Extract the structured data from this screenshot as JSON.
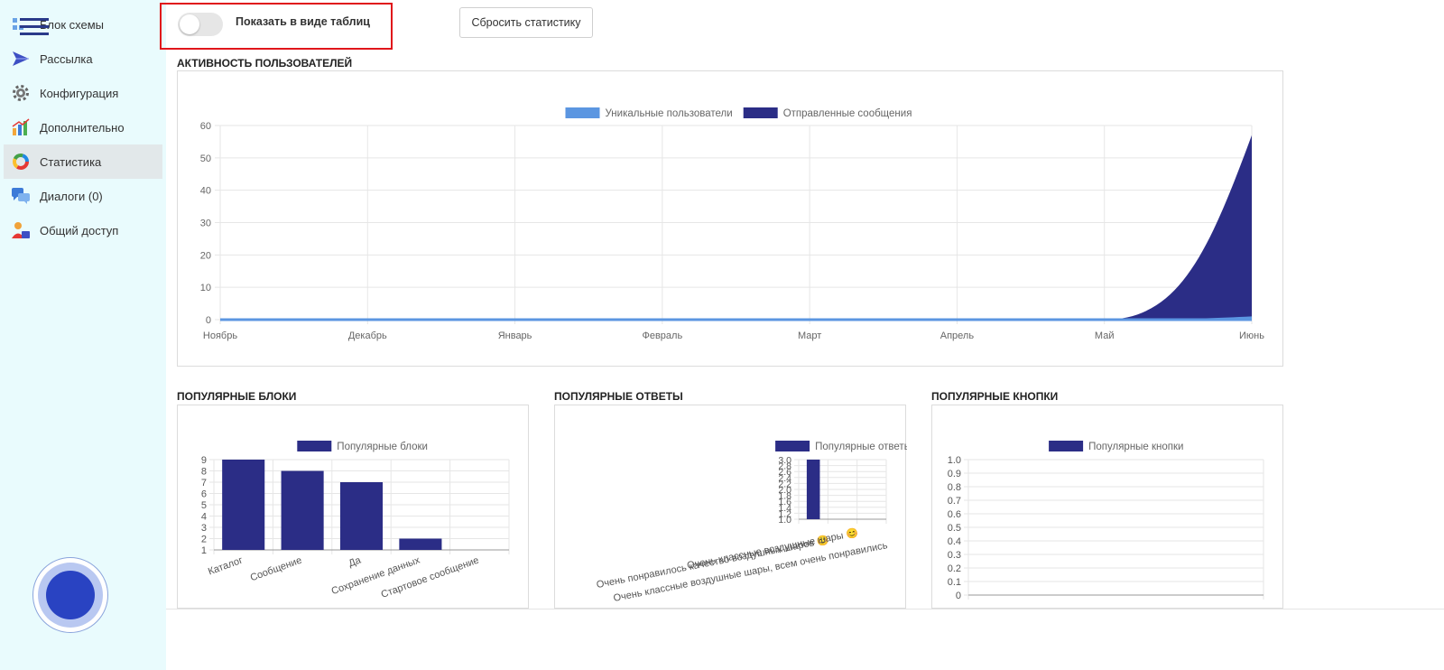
{
  "sidebar": {
    "items": [
      {
        "label": "Блок схемы",
        "icon": "flowchart-icon"
      },
      {
        "label": "Рассылка",
        "icon": "paper-plane-icon"
      },
      {
        "label": "Конфигурация",
        "icon": "gear-icon"
      },
      {
        "label": "Дополнительно",
        "icon": "bar-chart-icon"
      },
      {
        "label": "Статистика",
        "icon": "donut-chart-icon",
        "active": true
      },
      {
        "label": "Диалоги (0)",
        "icon": "chat-bubbles-icon"
      },
      {
        "label": "Общий доступ",
        "icon": "user-share-icon"
      }
    ]
  },
  "toolbar": {
    "toggle_label": "Показать в виде таблиц",
    "toggle_on": false,
    "reset_label": "Сбросить статистику"
  },
  "colors": {
    "unique_users": "#5b96e1",
    "messages": "#2b2d86",
    "highlight_border": "#e0161b",
    "sidebar_bg": "#e9fbfd"
  },
  "sections": {
    "activity_title": "АКТИВНОСТЬ ПОЛЬЗОВАТЕЛЕЙ",
    "blocks_title": "ПОПУЛЯРНЫЕ БЛОКИ",
    "answers_title": "ПОПУЛЯРНЫЕ ОТВЕТЫ",
    "buttons_title": "ПОПУЛЯРНЫЕ КНОПКИ"
  },
  "chart_data": [
    {
      "type": "area",
      "x": [
        "Ноябрь",
        "Декабрь",
        "Январь",
        "Февраль",
        "Март",
        "Апрель",
        "Май",
        "Июнь"
      ],
      "series": [
        {
          "name": "Уникальные пользователи",
          "values": [
            0,
            0,
            0,
            0,
            0,
            0,
            0,
            1
          ]
        },
        {
          "name": "Отправленные сообщения",
          "values": [
            0,
            0,
            0,
            0,
            0,
            0,
            0,
            57
          ]
        }
      ],
      "ylim": [
        0,
        60
      ],
      "yticks": [
        0,
        10,
        20,
        30,
        40,
        50,
        60
      ],
      "legend": "top",
      "grid": true
    },
    {
      "type": "bar",
      "categories": [
        "Каталог",
        "Сообщение",
        "Да",
        "Сохранение данных",
        "Стартовое сообщение"
      ],
      "series": [
        {
          "name": "Популярные блоки",
          "values": [
            9,
            8,
            7,
            2,
            1
          ]
        }
      ],
      "ylim": [
        1,
        9
      ],
      "yticks": [
        1,
        2,
        3,
        4,
        5,
        6,
        7,
        8,
        9
      ],
      "legend": "top",
      "grid": true
    },
    {
      "type": "bar",
      "categories": [
        "Очень понравилось качество воздушных шаров 😊",
        "Очень классные воздушные шары 😊",
        "Очень классные воздушные шары, всем очень понравились"
      ],
      "series": [
        {
          "name": "Популярные ответы",
          "values": [
            3,
            1,
            1
          ]
        }
      ],
      "ylim": [
        1,
        3
      ],
      "yticks": [
        "1.0",
        "1.2",
        "1.4",
        "1.6",
        "1.8",
        "2.0",
        "2.2",
        "2.4",
        "2.6",
        "2.8",
        "3.0"
      ],
      "legend": "top",
      "grid": true
    },
    {
      "type": "bar",
      "categories": [],
      "series": [
        {
          "name": "Популярные кнопки",
          "values": []
        }
      ],
      "ylim": [
        0,
        1
      ],
      "yticks": [
        "0",
        "0.1",
        "0.2",
        "0.3",
        "0.4",
        "0.5",
        "0.6",
        "0.7",
        "0.8",
        "0.9",
        "1.0"
      ],
      "legend": "top",
      "grid": true
    }
  ]
}
